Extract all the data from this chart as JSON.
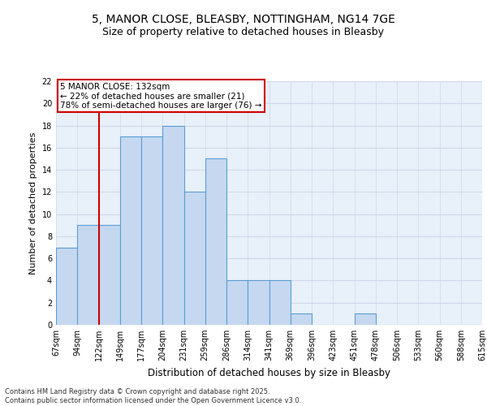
{
  "title_line1": "5, MANOR CLOSE, BLEASBY, NOTTINGHAM, NG14 7GE",
  "title_line2": "Size of property relative to detached houses in Bleasby",
  "xlabel": "Distribution of detached houses by size in Bleasby",
  "ylabel": "Number of detached properties",
  "categories": [
    "67sqm",
    "94sqm",
    "122sqm",
    "149sqm",
    "177sqm",
    "204sqm",
    "231sqm",
    "259sqm",
    "286sqm",
    "314sqm",
    "341sqm",
    "369sqm",
    "396sqm",
    "423sqm",
    "451sqm",
    "478sqm",
    "506sqm",
    "533sqm",
    "560sqm",
    "588sqm",
    "615sqm"
  ],
  "bar_values": [
    7,
    9,
    9,
    17,
    17,
    18,
    12,
    15,
    4,
    4,
    4,
    1,
    0,
    0,
    1,
    0,
    0,
    0,
    0,
    0,
    0
  ],
  "bar_color": "#c5d8f0",
  "bar_edge_color": "#5a9fd4",
  "red_line_x": 2,
  "annotation_text": "5 MANOR CLOSE: 132sqm\n← 22% of detached houses are smaller (21)\n78% of semi-detached houses are larger (76) →",
  "annotation_box_color": "#ffffff",
  "annotation_box_edge_color": "#cc0000",
  "red_line_color": "#cc0000",
  "ylim": [
    0,
    22
  ],
  "yticks": [
    0,
    2,
    4,
    6,
    8,
    10,
    12,
    14,
    16,
    18,
    20,
    22
  ],
  "grid_color": "#d0d8e8",
  "background_color": "#e8f0fa",
  "footer_text": "Contains HM Land Registry data © Crown copyright and database right 2025.\nContains public sector information licensed under the Open Government Licence v3.0.",
  "title_fontsize": 10,
  "subtitle_fontsize": 9,
  "tick_fontsize": 7,
  "ylabel_fontsize": 8,
  "xlabel_fontsize": 8.5,
  "footer_fontsize": 6
}
